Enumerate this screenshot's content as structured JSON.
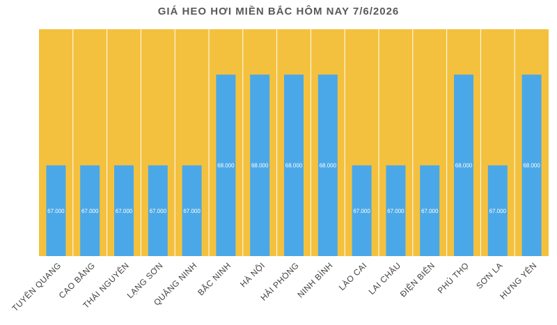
{
  "chart_data": {
    "type": "bar",
    "title": "GIÁ HEO HƠI MIỀN BẮC HÔM NAY 7/6/2026",
    "categories": [
      "TUYÊN QUANG",
      "CAO BẰNG",
      "THÁI NGUYÊN",
      "LẠNG SƠN",
      "QUẢNG NINH",
      "BẮC NINH",
      "HÀ NỘI",
      "HẢI PHÒNG",
      "NINH BÌNH",
      "LÀO CAI",
      "LAI CHÂU",
      "ĐIỆN BIÊN",
      "PHÚ THỌ",
      "SƠN LA",
      "HƯNG YÊN"
    ],
    "values": [
      67000,
      67000,
      67000,
      67000,
      67000,
      68000,
      68000,
      68000,
      68000,
      67000,
      67000,
      67000,
      68000,
      67000,
      68000
    ],
    "data_labels": [
      "67.000",
      "67.000",
      "67.000",
      "67.000",
      "67.000",
      "68.000",
      "68.000",
      "68.000",
      "68.000",
      "67.000",
      "67.000",
      "67.000",
      "68.000",
      "67.000",
      "68.000"
    ],
    "ylim": [
      66000,
      68500
    ],
    "grid": false,
    "legend": "none",
    "xlabel": "",
    "ylabel": "",
    "colors": {
      "bar": "#4AA8E8",
      "plot_background": "#F4C13E",
      "column_divider": "#ffffff",
      "title": "#595959",
      "tick_label": "#404040",
      "data_label": "#ffffff"
    }
  }
}
